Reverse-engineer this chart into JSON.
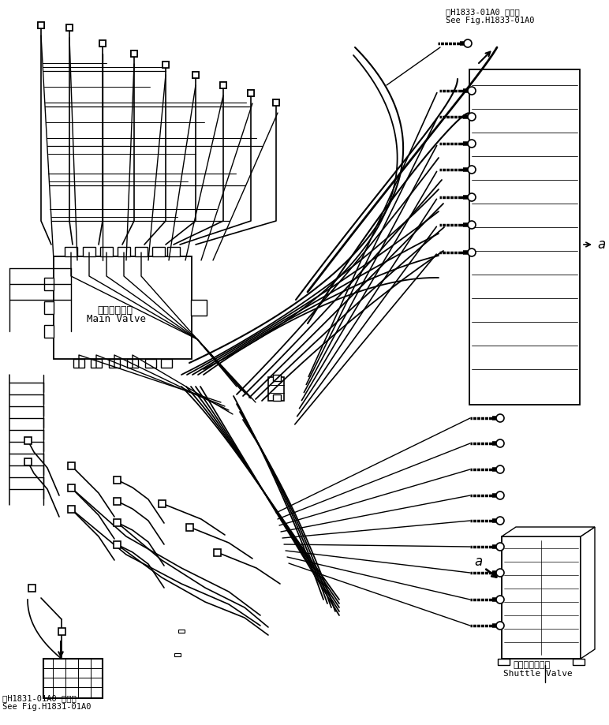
{
  "title_top_right_line1": "第H1833-01A0 図参照",
  "title_top_right_line2": "See Fig.H1833-01A0",
  "title_bot_left_line1": "第H1831-01A0 図参照",
  "title_bot_left_line2": "See Fig.H1831-01A0",
  "main_valve_jp": "メインバルブ",
  "main_valve_en": "Main Valve",
  "shuttle_valve_jp": "シャトルバルブ",
  "shuttle_valve_en": "Shuttle Valve",
  "label_a": "a",
  "bg_color": "#ffffff",
  "line_color": "#000000",
  "line_width": 1.0,
  "fig_width": 7.72,
  "fig_height": 9.19
}
